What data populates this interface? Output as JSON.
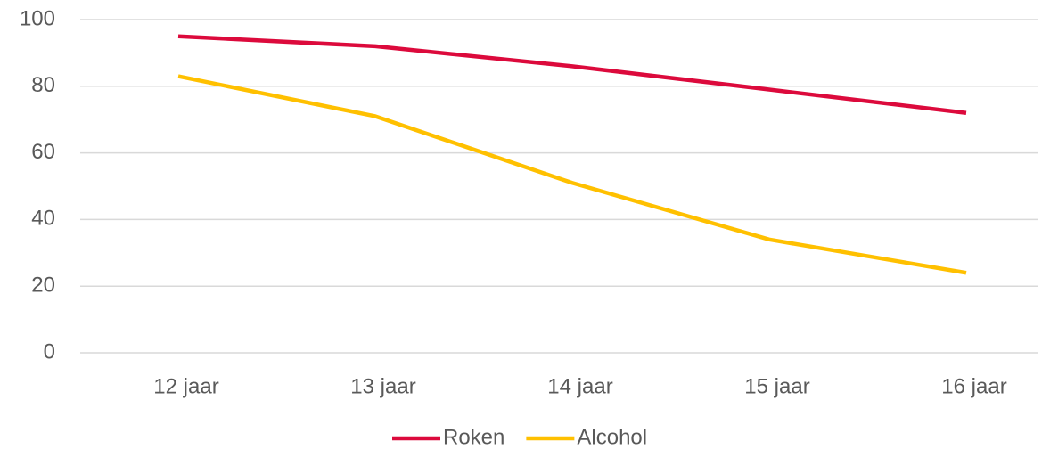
{
  "chart_data": {
    "type": "line",
    "categories": [
      "12 jaar",
      "13 jaar",
      "14 jaar",
      "15 jaar",
      "16 jaar"
    ],
    "series": [
      {
        "name": "Roken",
        "color": "#dc0a3c",
        "values": [
          95,
          92,
          86,
          79,
          72
        ]
      },
      {
        "name": "Alcohol",
        "color": "#ffc000",
        "values": [
          83,
          71,
          51,
          34,
          24
        ]
      }
    ],
    "ylim": [
      0,
      100
    ],
    "yticks": [
      0,
      20,
      40,
      60,
      80,
      100
    ],
    "grid": true,
    "legend": "bottom"
  }
}
